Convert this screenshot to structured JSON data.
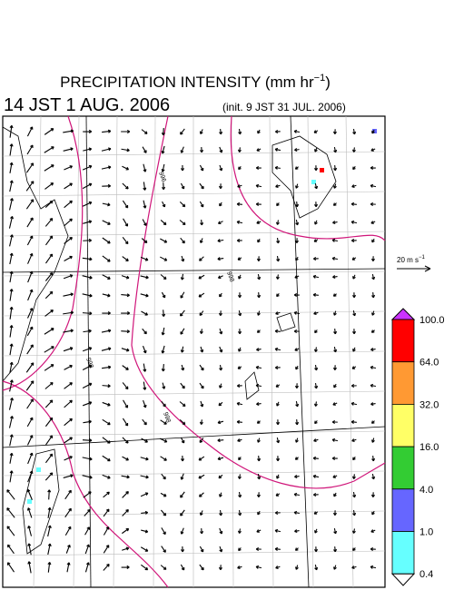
{
  "header": {
    "title": {
      "text": "PRECIPITATION INTENSITY (mm hr",
      "sup": "−1",
      "end": ")"
    },
    "valid_time": "14 JST 1 AUG. 2006",
    "init_time": "(init. 9 JST 31 JUL. 2006)"
  },
  "reference_vector": {
    "label": "20 m s",
    "sup": "−1"
  },
  "contour_labels": [
    "996",
    "998",
    "998",
    "998"
  ],
  "colorbar": {
    "labels": [
      "100.0",
      "64.0",
      "32.0",
      "16.0",
      "4.0",
      "1.0",
      "0.4"
    ],
    "colors": [
      "#ff0000",
      "#ff9933",
      "#ffff66",
      "#33cc33",
      "#6666ff",
      "#66ffff"
    ],
    "over_color": "#cc33ff",
    "under_color": "#ffffff"
  }
}
